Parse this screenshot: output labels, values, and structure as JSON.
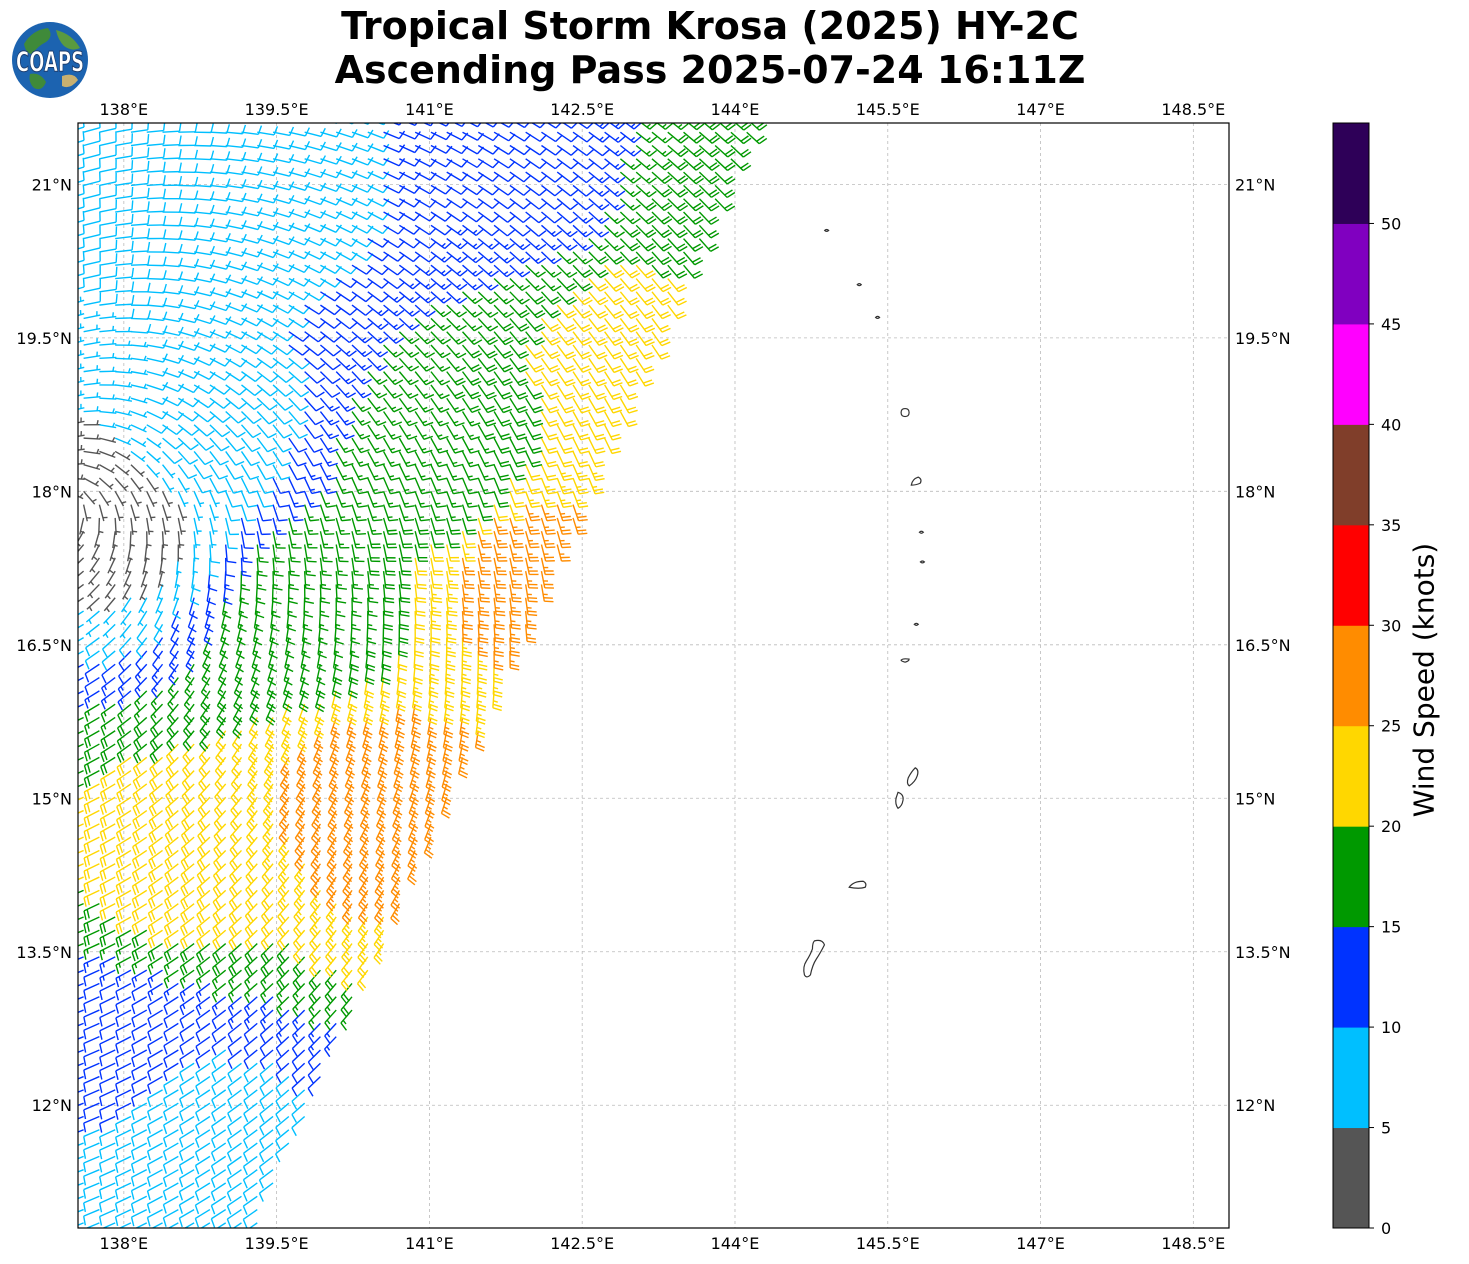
{
  "title": {
    "line1": "Tropical Storm Krosa (2025) HY-2C",
    "line2": "Ascending Pass 2025-07-24 16:11Z"
  },
  "logo": {
    "text": "COAPS",
    "icon": "globe-logo-icon"
  },
  "map": {
    "lon_range": [
      137.55,
      148.85
    ],
    "lat_range": [
      10.8,
      21.6
    ],
    "lon_ticks": [
      138,
      139.5,
      141,
      142.5,
      144,
      145.5,
      147,
      148.5
    ],
    "lon_tick_labels": [
      "138°E",
      "139.5°E",
      "141°E",
      "142.5°E",
      "144°E",
      "145.5°E",
      "147°E",
      "148.5°E"
    ],
    "lat_ticks": [
      21,
      19.5,
      18,
      16.5,
      15,
      13.5,
      12
    ],
    "lat_tick_labels": [
      "21°N",
      "19.5°N",
      "18°N",
      "16.5°N",
      "15°N",
      "13.5°N",
      "12°N"
    ],
    "gridlines": true,
    "storm_center": {
      "lon": 137.35,
      "lat": 17.9
    }
  },
  "colorbar": {
    "label": "Wind Speed (knots)",
    "tick_labels": [
      "0",
      "5",
      "10",
      "15",
      "20",
      "25",
      "30",
      "35",
      "40",
      "45",
      "50"
    ],
    "bins": [
      {
        "min": 0,
        "max": 5,
        "color": "#555555"
      },
      {
        "min": 5,
        "max": 10,
        "color": "#00bfff"
      },
      {
        "min": 10,
        "max": 15,
        "color": "#0033ff"
      },
      {
        "min": 15,
        "max": 20,
        "color": "#009900"
      },
      {
        "min": 20,
        "max": 25,
        "color": "#ffd700"
      },
      {
        "min": 25,
        "max": 30,
        "color": "#ff8c00"
      },
      {
        "min": 30,
        "max": 35,
        "color": "#ff0000"
      },
      {
        "min": 35,
        "max": 40,
        "color": "#803e2a"
      },
      {
        "min": 40,
        "max": 45,
        "color": "#ff00ff"
      },
      {
        "min": 45,
        "max": 50,
        "color": "#8000c0"
      },
      {
        "min": 50,
        "max": 55,
        "color": "#2e0058"
      }
    ]
  },
  "swath": {
    "corners_lonlat": [
      [
        137.5,
        21.6
      ],
      [
        144.05,
        21.35
      ],
      [
        139.3,
        10.8
      ],
      [
        137.5,
        10.8
      ]
    ],
    "wind_samples": [
      {
        "lon": 139.5,
        "lat": 21.1,
        "speed": 9
      },
      {
        "lon": 142.0,
        "lat": 21.2,
        "speed": 12
      },
      {
        "lon": 143.6,
        "lat": 20.8,
        "speed": 18
      },
      {
        "lon": 143.0,
        "lat": 19.5,
        "speed": 22
      },
      {
        "lon": 141.2,
        "lat": 18.1,
        "speed": 17
      },
      {
        "lon": 141.8,
        "lat": 17.4,
        "speed": 27
      },
      {
        "lon": 139.8,
        "lat": 16.9,
        "speed": 17
      },
      {
        "lon": 140.4,
        "lat": 15.1,
        "speed": 27
      },
      {
        "lon": 138.5,
        "lat": 14.4,
        "speed": 21
      },
      {
        "lon": 138.0,
        "lat": 17.9,
        "speed": 3
      },
      {
        "lon": 138.6,
        "lat": 18.5,
        "speed": 8
      },
      {
        "lon": 137.9,
        "lat": 12.5,
        "speed": 11
      },
      {
        "lon": 138.6,
        "lat": 11.6,
        "speed": 8
      }
    ]
  },
  "islands": [
    {
      "name": "Guam",
      "lon": 144.78,
      "lat": 13.45
    },
    {
      "name": "Rota",
      "lon": 145.2,
      "lat": 14.15
    },
    {
      "name": "Tinian",
      "lon": 145.62,
      "lat": 14.98
    },
    {
      "name": "Saipan",
      "lon": 145.75,
      "lat": 15.2
    },
    {
      "name": "Anatahan",
      "lon": 145.67,
      "lat": 16.35
    },
    {
      "name": "Sarigan",
      "lon": 145.78,
      "lat": 16.7
    },
    {
      "name": "Guguan",
      "lon": 145.84,
      "lat": 17.31
    },
    {
      "name": "Alamagan",
      "lon": 145.83,
      "lat": 17.6
    },
    {
      "name": "Pagan",
      "lon": 145.78,
      "lat": 18.1
    },
    {
      "name": "Agrihan",
      "lon": 145.67,
      "lat": 18.77
    },
    {
      "name": "Asuncion",
      "lon": 145.4,
      "lat": 19.7
    },
    {
      "name": "Maug",
      "lon": 145.22,
      "lat": 20.02
    },
    {
      "name": "Farallon de Pajaros",
      "lon": 144.9,
      "lat": 20.55
    }
  ]
}
